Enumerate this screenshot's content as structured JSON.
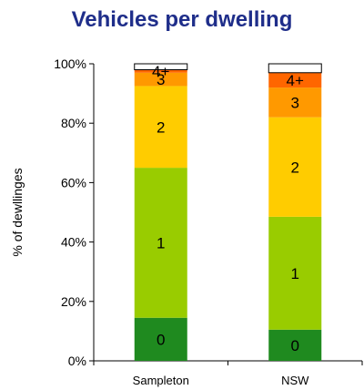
{
  "chart_data": {
    "type": "bar",
    "stacked": true,
    "title": "Vehicles per dwelling",
    "xlabel": "",
    "ylabel": "% of dewllinges",
    "ylim": [
      0,
      100
    ],
    "yticks": [
      "0%",
      "20%",
      "40%",
      "60%",
      "80%",
      "100%"
    ],
    "categories": [
      "Sampleton",
      "NSW"
    ],
    "series": [
      {
        "name": "0",
        "color": "#1f8a1f",
        "values": [
          14.5,
          10.5
        ]
      },
      {
        "name": "1",
        "color": "#99cc00",
        "values": [
          50.5,
          38
        ]
      },
      {
        "name": "2",
        "color": "#ffcc00",
        "values": [
          27.5,
          33.5
        ]
      },
      {
        "name": "3",
        "color": "#ff9900",
        "values": [
          4.5,
          10
        ]
      },
      {
        "name": "4+",
        "color": "#ff6600",
        "values": [
          1,
          5
        ]
      },
      {
        "name": "",
        "color": "#ffffff",
        "values": [
          2,
          3
        ]
      }
    ],
    "segment_labels": [
      [
        "0",
        "1",
        "2",
        "3",
        "4+",
        ""
      ],
      [
        "0",
        "1",
        "2",
        "3",
        "4+",
        ""
      ]
    ],
    "grid": false,
    "legend": "none"
  }
}
